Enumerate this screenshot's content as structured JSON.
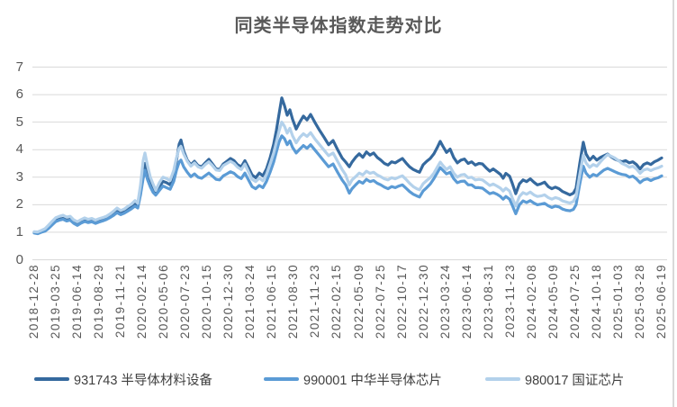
{
  "chart_data": {
    "type": "line",
    "title": "同类半导体指数走势对比",
    "legend_position": "bottom",
    "grid": "horizontal",
    "ylim": [
      0,
      7
    ],
    "yticks": [
      0,
      1,
      2,
      3,
      4,
      5,
      6,
      7
    ],
    "xtick_labels": [
      "2018-12-28",
      "2019-03-25",
      "2019-06-14",
      "2019-08-29",
      "2019-11-21",
      "2020-02-14",
      "2020-05-06",
      "2020-07-23",
      "2020-10-15",
      "2020-12-30",
      "2021-03-24",
      "2021-06-15",
      "2021-08-30",
      "2021-11-23",
      "2022-02-15",
      "2022-05-09",
      "2022-07-25",
      "2022-10-17",
      "2022-12-30",
      "2023-03-24",
      "2023-06-14",
      "2023-08-31",
      "2023-11-23",
      "2024-02-08",
      "2024-05-09",
      "2024-07-25",
      "2024-10-18",
      "2025-01-03",
      "2025-03-28",
      "2025-06-19"
    ],
    "t": [
      0,
      0.0057,
      0.0115,
      0.0172,
      0.023,
      0.0287,
      0.0344,
      0.0402,
      0.0459,
      0.0517,
      0.0574,
      0.0631,
      0.0689,
      0.0746,
      0.0803,
      0.0861,
      0.0918,
      0.0976,
      0.1033,
      0.109,
      0.1148,
      0.1205,
      0.1263,
      0.132,
      0.1377,
      0.1435,
      0.1492,
      0.1549,
      0.1607,
      0.165,
      0.1693,
      0.1736,
      0.1765,
      0.1808,
      0.1851,
      0.1894,
      0.1937,
      0.1994,
      0.2052,
      0.2109,
      0.2166,
      0.2224,
      0.2267,
      0.231,
      0.2339,
      0.2382,
      0.2439,
      0.2497,
      0.2554,
      0.2611,
      0.2669,
      0.2726,
      0.2783,
      0.2841,
      0.2898,
      0.2955,
      0.3013,
      0.307,
      0.3127,
      0.3185,
      0.3242,
      0.33,
      0.3357,
      0.3414,
      0.3472,
      0.3529,
      0.3587,
      0.3644,
      0.3701,
      0.3759,
      0.3816,
      0.3859,
      0.3902,
      0.3945,
      0.3988,
      0.4031,
      0.4075,
      0.4118,
      0.4175,
      0.4232,
      0.429,
      0.4347,
      0.4404,
      0.4476,
      0.4548,
      0.462,
      0.4692,
      0.4763,
      0.4835,
      0.4907,
      0.4964,
      0.5022,
      0.5065,
      0.5122,
      0.5179,
      0.5237,
      0.5294,
      0.5352,
      0.5409,
      0.5466,
      0.5524,
      0.5581,
      0.5638,
      0.5696,
      0.5753,
      0.581,
      0.5868,
      0.5925,
      0.5982,
      0.604,
      0.6097,
      0.614,
      0.6198,
      0.6255,
      0.6312,
      0.637,
      0.6427,
      0.647,
      0.6513,
      0.6571,
      0.6628,
      0.6685,
      0.6743,
      0.68,
      0.6857,
      0.6915,
      0.6972,
      0.703,
      0.7087,
      0.7144,
      0.7202,
      0.7259,
      0.7316,
      0.7374,
      0.7431,
      0.7474,
      0.7517,
      0.7575,
      0.7618,
      0.7675,
      0.7733,
      0.779,
      0.7847,
      0.7905,
      0.7962,
      0.8019,
      0.8077,
      0.8134,
      0.8192,
      0.8249,
      0.8306,
      0.8364,
      0.8421,
      0.8478,
      0.8536,
      0.8593,
      0.8636,
      0.8694,
      0.8751,
      0.8794,
      0.8852,
      0.8909,
      0.8966,
      0.9024,
      0.9081,
      0.9138,
      0.9196,
      0.9253,
      0.9311,
      0.9368,
      0.9425,
      0.9483,
      0.954,
      0.9597,
      0.9655,
      0.9712,
      0.977,
      0.9827,
      0.9884,
      0.9942,
      1
    ],
    "series": [
      {
        "code": "931743",
        "name": "931743 半导体材料设备",
        "color": "#35699E",
        "values": [
          1,
          0.98,
          1.03,
          1.06,
          1.16,
          1.3,
          1.42,
          1.48,
          1.5,
          1.44,
          1.47,
          1.35,
          1.28,
          1.36,
          1.42,
          1.38,
          1.42,
          1.36,
          1.42,
          1.46,
          1.52,
          1.6,
          1.7,
          1.82,
          1.73,
          1.78,
          1.88,
          1.95,
          2.05,
          1.95,
          2.4,
          3.1,
          3.5,
          3.1,
          2.8,
          2.55,
          2.42,
          2.65,
          2.85,
          2.8,
          2.72,
          3.1,
          3.6,
          4.2,
          4.35,
          3.95,
          3.62,
          3.45,
          3.58,
          3.42,
          3.38,
          3.52,
          3.65,
          3.48,
          3.3,
          3.28,
          3.48,
          3.58,
          3.68,
          3.6,
          3.45,
          3.38,
          3.6,
          3.35,
          3.08,
          2.98,
          3.15,
          3.05,
          3.3,
          3.7,
          4.2,
          4.7,
          5.3,
          5.88,
          5.6,
          5.25,
          5.45,
          5.1,
          4.75,
          5,
          5.22,
          5.08,
          5.28,
          4.98,
          4.7,
          4.45,
          4.18,
          4.33,
          4,
          3.7,
          3.55,
          3.38,
          3.55,
          3.72,
          3.85,
          3.72,
          3.92,
          3.8,
          3.88,
          3.72,
          3.62,
          3.5,
          3.44,
          3.56,
          3.52,
          3.6,
          3.68,
          3.52,
          3.38,
          3.28,
          3.22,
          3.18,
          3.45,
          3.58,
          3.68,
          3.85,
          4.1,
          4.3,
          4.12,
          3.9,
          4.02,
          3.72,
          3.52,
          3.62,
          3.66,
          3.5,
          3.56,
          3.44,
          3.5,
          3.48,
          3.34,
          3.22,
          3.3,
          3.2,
          3.1,
          2.96,
          3.14,
          3.04,
          2.78,
          2.4,
          2.76,
          2.9,
          2.84,
          2.94,
          2.82,
          2.72,
          2.76,
          2.82,
          2.66,
          2.58,
          2.64,
          2.58,
          2.48,
          2.42,
          2.36,
          2.42,
          2.6,
          3.5,
          4.27,
          3.85,
          3.62,
          3.76,
          3.62,
          3.72,
          3.78,
          3.84,
          3.74,
          3.66,
          3.6,
          3.56,
          3.6,
          3.52,
          3.56,
          3.46,
          3.3,
          3.46,
          3.52,
          3.46,
          3.56,
          3.62,
          3.7
        ]
      },
      {
        "code": "990001",
        "name": "990001 中华半导体芯片",
        "color": "#5B9BD5",
        "values": [
          0.97,
          0.95,
          1,
          1.04,
          1.14,
          1.27,
          1.39,
          1.44,
          1.47,
          1.41,
          1.44,
          1.32,
          1.25,
          1.33,
          1.39,
          1.35,
          1.38,
          1.32,
          1.37,
          1.41,
          1.46,
          1.53,
          1.61,
          1.71,
          1.64,
          1.69,
          1.77,
          1.85,
          1.95,
          1.88,
          2.35,
          2.95,
          3.25,
          2.9,
          2.65,
          2.45,
          2.35,
          2.52,
          2.68,
          2.62,
          2.56,
          2.85,
          3.25,
          3.55,
          3.62,
          3.38,
          3.18,
          3.02,
          3.12,
          3,
          2.96,
          3.06,
          3.15,
          3.04,
          2.92,
          2.9,
          3.05,
          3.12,
          3.2,
          3.14,
          3.02,
          2.95,
          3.15,
          2.9,
          2.66,
          2.58,
          2.7,
          2.62,
          2.85,
          3.18,
          3.55,
          3.92,
          4.28,
          4.5,
          4.4,
          4.18,
          4.32,
          4.08,
          3.88,
          4.02,
          4.15,
          4.05,
          4.18,
          3.98,
          3.78,
          3.58,
          3.38,
          3.48,
          3.18,
          2.9,
          2.72,
          2.42,
          2.58,
          2.72,
          2.85,
          2.78,
          2.92,
          2.84,
          2.88,
          2.78,
          2.72,
          2.64,
          2.58,
          2.66,
          2.62,
          2.68,
          2.72,
          2.6,
          2.48,
          2.38,
          2.32,
          2.28,
          2.5,
          2.62,
          2.75,
          2.95,
          3.18,
          3.35,
          3.25,
          3.12,
          3.18,
          2.95,
          2.8,
          2.85,
          2.86,
          2.72,
          2.72,
          2.62,
          2.62,
          2.6,
          2.5,
          2.4,
          2.44,
          2.38,
          2.3,
          2.2,
          2.3,
          2.2,
          1.98,
          1.67,
          2,
          2.14,
          2.08,
          2.15,
          2.06,
          2,
          2.02,
          2.05,
          1.96,
          1.9,
          1.95,
          1.92,
          1.84,
          1.8,
          1.78,
          1.83,
          2,
          2.75,
          3.4,
          3.15,
          3,
          3.1,
          3.05,
          3.16,
          3.26,
          3.32,
          3.26,
          3.2,
          3.14,
          3.1,
          3.08,
          3,
          3.04,
          2.94,
          2.8,
          2.9,
          2.94,
          2.88,
          2.94,
          2.98,
          3.05
        ]
      },
      {
        "code": "980017",
        "name": "980017 国证芯片",
        "color": "#B3D1EB",
        "values": [
          1.02,
          1.01,
          1.07,
          1.13,
          1.26,
          1.4,
          1.53,
          1.58,
          1.62,
          1.55,
          1.58,
          1.45,
          1.38,
          1.46,
          1.52,
          1.47,
          1.5,
          1.44,
          1.49,
          1.53,
          1.58,
          1.66,
          1.76,
          1.88,
          1.79,
          1.84,
          1.94,
          2.02,
          2.15,
          2.05,
          2.7,
          3.6,
          3.88,
          3.4,
          3,
          2.75,
          2.52,
          2.8,
          3,
          2.95,
          2.88,
          3.25,
          3.7,
          4.05,
          4.12,
          3.85,
          3.58,
          3.4,
          3.52,
          3.38,
          3.33,
          3.46,
          3.56,
          3.42,
          3.26,
          3.24,
          3.42,
          3.5,
          3.58,
          3.5,
          3.36,
          3.28,
          3.48,
          3.2,
          2.92,
          2.84,
          2.97,
          2.87,
          3.1,
          3.48,
          3.88,
          4.28,
          4.68,
          5,
          4.85,
          4.6,
          4.78,
          4.5,
          4.25,
          4.45,
          4.58,
          4.48,
          4.62,
          4.38,
          4.18,
          3.98,
          3.78,
          3.88,
          3.58,
          3.28,
          3.08,
          2.72,
          2.9,
          3.02,
          3.15,
          3.08,
          3.22,
          3.14,
          3.18,
          3.08,
          3.02,
          2.94,
          2.9,
          2.98,
          2.94,
          3,
          3.05,
          2.92,
          2.78,
          2.66,
          2.58,
          2.54,
          2.76,
          2.88,
          2.98,
          3.15,
          3.38,
          3.55,
          3.42,
          3.28,
          3.38,
          3.15,
          3,
          3.08,
          3.1,
          2.98,
          3,
          2.9,
          2.92,
          2.9,
          2.8,
          2.7,
          2.75,
          2.68,
          2.6,
          2.5,
          2.6,
          2.5,
          2.25,
          1.95,
          2.3,
          2.44,
          2.38,
          2.46,
          2.36,
          2.3,
          2.32,
          2.36,
          2.26,
          2.2,
          2.26,
          2.22,
          2.14,
          2.1,
          2.06,
          2.12,
          2.3,
          3.1,
          3.8,
          3.52,
          3.36,
          3.46,
          3.4,
          3.56,
          3.7,
          3.82,
          3.76,
          3.7,
          3.6,
          3.5,
          3.44,
          3.36,
          3.4,
          3.3,
          3.14,
          3.26,
          3.3,
          3.24,
          3.3,
          3.34,
          3.4
        ]
      }
    ],
    "colors": {
      "gridline": "#D9D9D9",
      "axis_text": "#595959",
      "title_text": "#595959",
      "legend_text": "#404040",
      "background": "#FFFFFF"
    }
  }
}
